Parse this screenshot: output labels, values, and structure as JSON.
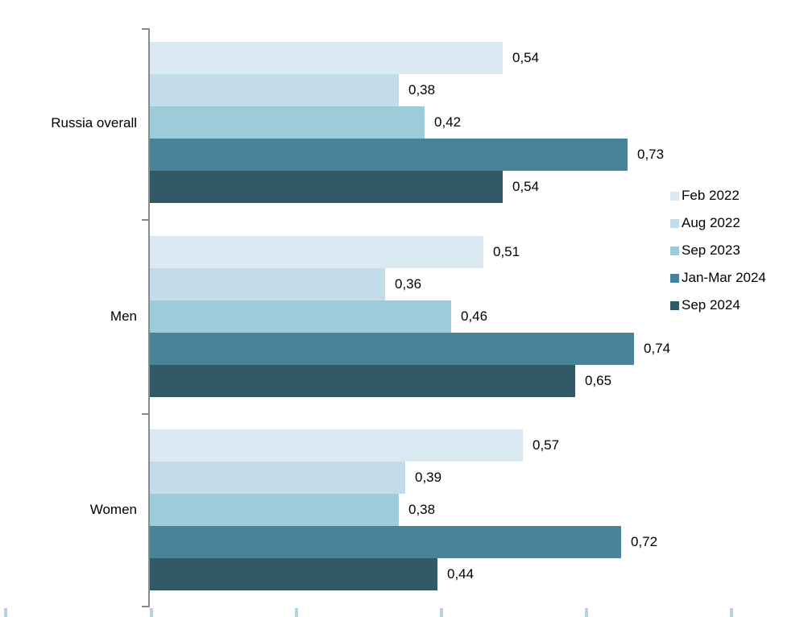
{
  "chart_data": {
    "type": "bar",
    "orientation": "horizontal",
    "title": "",
    "xlabel": "",
    "ylabel": "",
    "xlim": [
      0,
      1
    ],
    "grid": false,
    "legend_position": "right",
    "value_label_format": "comma-decimal",
    "categories": [
      "Russia overall",
      "Men",
      "Women"
    ],
    "series": [
      {
        "name": "Feb 2022",
        "color": "#dbe9f2",
        "values": [
          0.54,
          0.51,
          0.57
        ],
        "labels": [
          "0,54",
          "0,51",
          "0,57"
        ]
      },
      {
        "name": "Aug 2022",
        "color": "#c2dde9",
        "values": [
          0.38,
          0.36,
          0.39
        ],
        "labels": [
          "0,38",
          "0,36",
          "0,39"
        ]
      },
      {
        "name": "Sep 2023",
        "color": "#9dcbda",
        "values": [
          0.42,
          0.46,
          0.38
        ],
        "labels": [
          "0,42",
          "0,46",
          "0,38"
        ]
      },
      {
        "name": "Jan-Mar 2024",
        "color": "#488399",
        "values": [
          0.73,
          0.74,
          0.72
        ],
        "labels": [
          "0,73",
          "0,74",
          "0,72"
        ]
      },
      {
        "name": "Sep 2024",
        "color": "#315966",
        "values": [
          0.54,
          0.65,
          0.44
        ],
        "labels": [
          "0,54",
          "0,65",
          "0,44"
        ]
      }
    ]
  }
}
